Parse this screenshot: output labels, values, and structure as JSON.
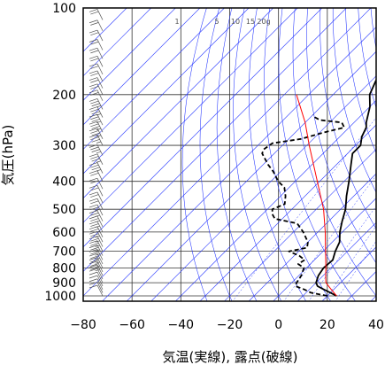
{
  "chart_data": {
    "type": "line",
    "xlabel": "気温(実線), 露点(破線)",
    "ylabel": "気圧(hPa)",
    "xlim": [
      -80,
      40
    ],
    "ylim": [
      1050,
      100
    ],
    "y_scale": "log",
    "grid": true,
    "x_ticks": [
      "−80",
      "−60",
      "−40",
      "−20",
      "0",
      "20",
      "40"
    ],
    "y_ticks": [
      "100",
      "200",
      "300",
      "400",
      "500",
      "600",
      "700",
      "800",
      "900",
      "1000"
    ],
    "mixing_ratio_labels": [
      "1",
      "5",
      "10",
      "15",
      "20g"
    ],
    "colors": {
      "temperature": "#000000",
      "dewpoint": "#000000",
      "parcel": "#ff0000",
      "reference_lines": "#2233ff",
      "grid": "#333333",
      "wind_barbs": "#555555"
    },
    "series": [
      {
        "key": "temperature",
        "style": "solid",
        "points": [
          [
            1000,
            23.8
          ],
          [
            975,
            20
          ],
          [
            950,
            16
          ],
          [
            925,
            12
          ],
          [
            900,
            10
          ],
          [
            850,
            8
          ],
          [
            800,
            7
          ],
          [
            750,
            7.5
          ],
          [
            700,
            5
          ],
          [
            650,
            3
          ],
          [
            600,
            -1
          ],
          [
            550,
            -4.5
          ],
          [
            500,
            -8
          ],
          [
            450,
            -13
          ],
          [
            400,
            -18
          ],
          [
            350,
            -24
          ],
          [
            320,
            -28
          ],
          [
            300,
            -28
          ],
          [
            280,
            -31
          ],
          [
            260,
            -33
          ],
          [
            250,
            -35
          ],
          [
            220,
            -40
          ],
          [
            200,
            -45
          ],
          [
            180,
            -48
          ],
          [
            160,
            -51
          ],
          [
            140,
            -55
          ],
          [
            125,
            -59
          ],
          [
            110,
            -62
          ],
          [
            100,
            -63
          ]
        ]
      },
      {
        "key": "dewpoint",
        "style": "dashed",
        "points": [
          [
            1000,
            20
          ],
          [
            975,
            12
          ],
          [
            950,
            8
          ],
          [
            925,
            3
          ],
          [
            900,
            2
          ],
          [
            850,
            1
          ],
          [
            800,
            -1
          ],
          [
            775,
            -5
          ],
          [
            750,
            -4
          ],
          [
            725,
            -8
          ],
          [
            700,
            -14
          ],
          [
            680,
            -8
          ],
          [
            650,
            -10
          ],
          [
            600,
            -16
          ],
          [
            560,
            -22
          ],
          [
            540,
            -33
          ],
          [
            520,
            -36
          ],
          [
            500,
            -38
          ],
          [
            480,
            -35
          ],
          [
            450,
            -38
          ],
          [
            420,
            -42
          ],
          [
            400,
            -47
          ],
          [
            370,
            -53
          ],
          [
            350,
            -58
          ],
          [
            320,
            -65
          ],
          [
            310,
            -66
          ],
          [
            295,
            -65
          ],
          [
            285,
            -55
          ],
          [
            270,
            -48
          ],
          [
            260,
            -42
          ],
          [
            250,
            -45
          ],
          [
            245,
            -55
          ],
          [
            240,
            -58
          ],
          [
            235,
            -60
          ]
        ]
      },
      {
        "key": "parcel",
        "style": "solid",
        "points": [
          [
            1000,
            23.8
          ],
          [
            950,
            19
          ],
          [
            900,
            14
          ],
          [
            850,
            11
          ],
          [
            800,
            8
          ],
          [
            700,
            1
          ],
          [
            600,
            -7
          ],
          [
            500,
            -17
          ],
          [
            400,
            -31
          ],
          [
            300,
            -49
          ],
          [
            250,
            -60
          ],
          [
            200,
            -75
          ]
        ]
      }
    ],
    "wind_profile": {
      "levels_hPa": [
        1000,
        975,
        950,
        925,
        900,
        875,
        850,
        825,
        800,
        775,
        750,
        725,
        700,
        675,
        650,
        625,
        600,
        575,
        550,
        525,
        500,
        475,
        450,
        425,
        400,
        375,
        350,
        325,
        300,
        285,
        270,
        255,
        240,
        225,
        210,
        200,
        190,
        180,
        170,
        160,
        150,
        140,
        130,
        120,
        110,
        100
      ],
      "speed_kt": [
        10,
        10,
        10,
        10,
        10,
        10,
        15,
        15,
        15,
        15,
        15,
        15,
        15,
        15,
        15,
        15,
        15,
        15,
        15,
        15,
        20,
        20,
        20,
        20,
        20,
        25,
        25,
        25,
        25,
        25,
        25,
        25,
        25,
        25,
        20,
        20,
        20,
        20,
        20,
        20,
        20,
        20,
        20,
        20,
        20,
        20
      ]
    }
  }
}
